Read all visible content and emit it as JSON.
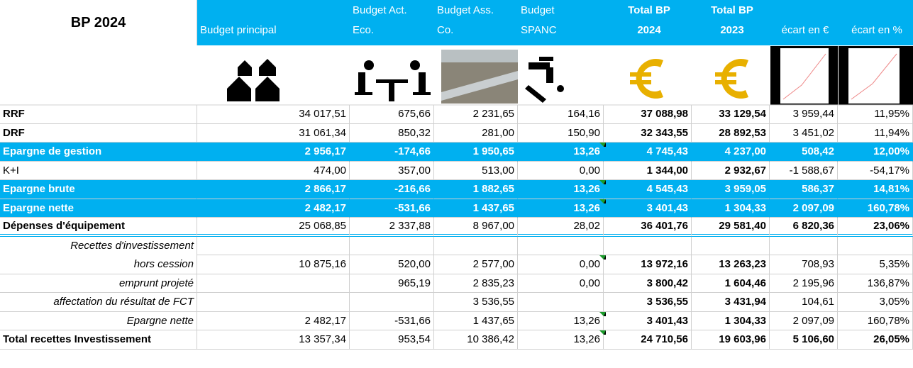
{
  "header": {
    "title": "BP 2024",
    "columns": [
      [
        "Budget principal"
      ],
      [
        "Budget Act.",
        "Eco."
      ],
      [
        "Budget Ass.",
        "Co."
      ],
      [
        "Budget",
        "SPANC"
      ],
      [
        "Total BP",
        "2024"
      ],
      [
        "Total BP",
        "2023"
      ],
      [
        "écart en €"
      ],
      [
        "écart en %"
      ]
    ]
  },
  "table": {
    "rows": [
      [
        "RRF",
        "34 017,51",
        "675,66",
        "2 231,65",
        "164,16",
        "37 088,98",
        "33 129,54",
        "3 959,44",
        "11,95%"
      ],
      [
        "DRF",
        "31 061,34",
        "850,32",
        "281,00",
        "150,90",
        "32 343,55",
        "28 892,53",
        "3 451,02",
        "11,94%"
      ],
      [
        "Epargne de gestion",
        "2 956,17",
        "-174,66",
        "1 950,65",
        "13,26",
        "4 745,43",
        "4 237,00",
        "508,42",
        "12,00%"
      ],
      [
        "K+I",
        "474,00",
        "357,00",
        "513,00",
        "0,00",
        "1 344,00",
        "2 932,67",
        "-1 588,67",
        "-54,17%"
      ],
      [
        "Epargne brute",
        "2 866,17",
        "-216,66",
        "1 882,65",
        "13,26",
        "4 545,43",
        "3 959,05",
        "586,37",
        "14,81%"
      ],
      [
        "Epargne nette",
        "2 482,17",
        "-531,66",
        "1 437,65",
        "13,26",
        "3 401,43",
        "1 304,33",
        "2 097,09",
        "160,78%"
      ],
      [
        "Dépenses d'équipement",
        "25 068,85",
        "2 337,88",
        "8 967,00",
        "28,02",
        "36 401,76",
        "29 581,40",
        "6 820,36",
        "23,06%"
      ],
      [
        "Recettes d'investissement",
        null,
        null,
        null,
        null,
        null,
        null,
        null,
        null
      ],
      [
        "hors cession",
        "10 875,16",
        "520,00",
        "2 577,00",
        "0,00",
        "13 972,16",
        "13 263,23",
        "708,93",
        "5,35%"
      ],
      [
        "emprunt projeté",
        null,
        "965,19",
        "2 835,23",
        "0,00",
        "3 800,42",
        "1 604,46",
        "2 195,96",
        "136,87%"
      ],
      [
        "affectation du résultat de FCT",
        null,
        null,
        "3 536,55",
        null,
        "3 536,55",
        "3 431,94",
        "104,61",
        "3,05%"
      ],
      [
        "Epargne nette",
        "2 482,17",
        "-531,66",
        "1 437,65",
        "13,26",
        "3 401,43",
        "1 304,33",
        "2 097,09",
        "160,78%"
      ],
      [
        "Total recettes Investissement",
        "13 357,34",
        "953,54",
        "10 386,42",
        "13,26",
        "24 710,56",
        "19 603,96",
        "5 106,60",
        "26,05%"
      ]
    ]
  }
}
